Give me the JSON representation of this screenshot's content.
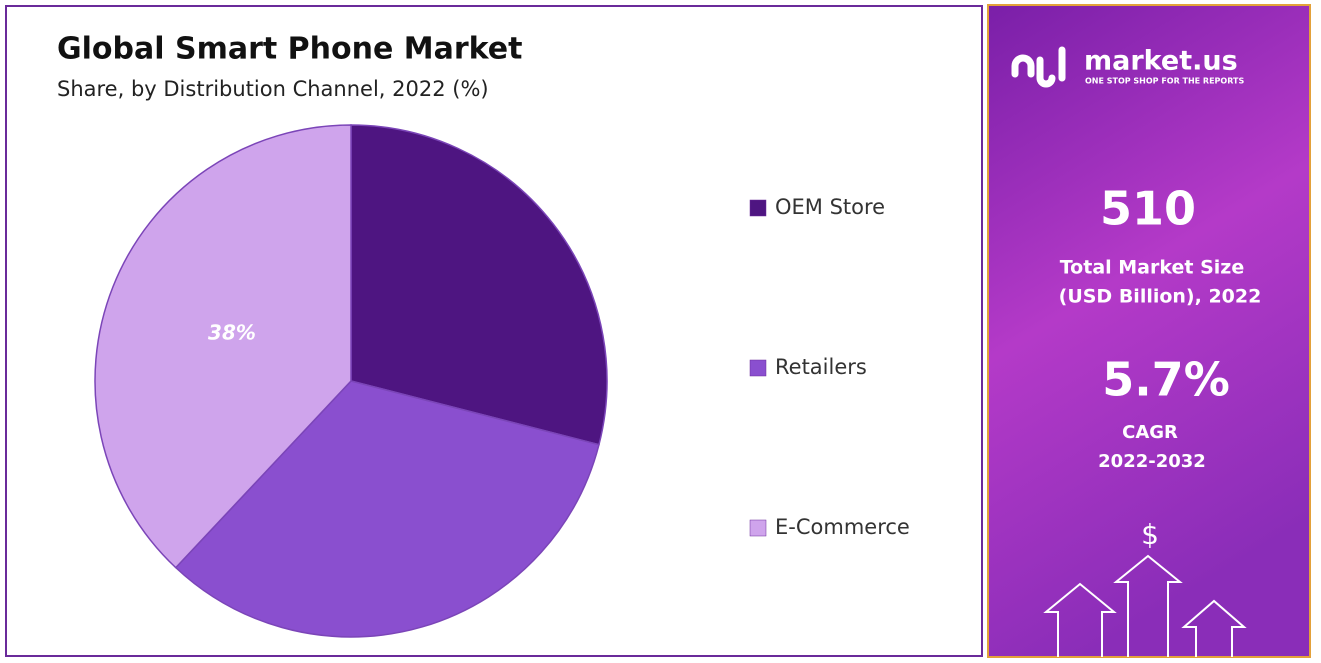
{
  "chart_data": {
    "type": "pie",
    "title": "Global Smart Phone Market",
    "subtitle": "Share, by Distribution Channel, 2022 (%)",
    "categories": [
      "OEM Store",
      "Retailers",
      "E-Commerce"
    ],
    "values": [
      29,
      33,
      38
    ],
    "value_labels": [
      null,
      null,
      "38%"
    ],
    "colors": [
      "#4e1581",
      "#8a4fcf",
      "#cfa4ec"
    ],
    "legend": "right"
  },
  "sidebar": {
    "brand": "market.us",
    "tagline": "ONE STOP SHOP FOR THE REPORTS",
    "market_size": "510",
    "market_size_label": [
      "Total Market Size",
      "(USD Billion), 2022"
    ],
    "cagr": "5.7%",
    "cagr_label": [
      "CAGR",
      "2022-2032"
    ],
    "icon": "$"
  }
}
